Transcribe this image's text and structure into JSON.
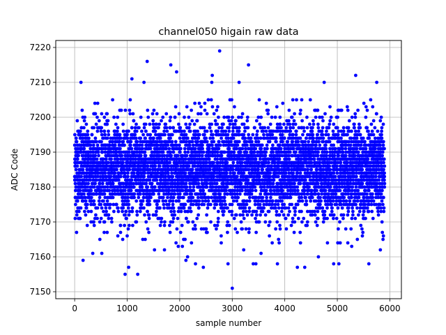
{
  "chart_data": {
    "type": "scatter",
    "title": "channel050 higain raw data",
    "xlabel": "sample number",
    "ylabel": "ADC Code",
    "xlim": [
      -360,
      6220
    ],
    "ylim": [
      7148,
      7222
    ],
    "xticks": [
      0,
      1000,
      2000,
      3000,
      4000,
      5000,
      6000
    ],
    "yticks": [
      7150,
      7160,
      7170,
      7180,
      7190,
      7200,
      7210,
      7220
    ],
    "grid": true,
    "marker_color": "#0000ff",
    "series": [
      {
        "n_samples": 6000,
        "x_range": [
          0,
          5900
        ],
        "band_core": [
          7172,
          7198
        ],
        "band_full": [
          7157,
          7205
        ],
        "points": [
          [
            1380,
            7216
          ],
          [
            1830,
            7215
          ],
          [
            1940,
            7213
          ],
          [
            2760,
            7219
          ],
          [
            3310,
            7215
          ],
          [
            5350,
            7212
          ],
          [
            2620,
            7212
          ],
          [
            1090,
            7211
          ],
          [
            120,
            7210
          ],
          [
            1320,
            7210
          ],
          [
            2610,
            7210
          ],
          [
            3130,
            7210
          ],
          [
            4750,
            7210
          ],
          [
            5750,
            7210
          ],
          [
            3000,
            7151
          ],
          [
            960,
            7155
          ],
          [
            1200,
            7155
          ],
          [
            160,
            7159
          ],
          [
            1520,
            7162
          ],
          [
            2050,
            7163
          ],
          [
            2300,
            7158
          ],
          [
            2450,
            7157
          ],
          [
            2920,
            7158
          ],
          [
            3400,
            7158
          ],
          [
            3450,
            7158
          ],
          [
            3860,
            7158
          ],
          [
            4240,
            7157
          ],
          [
            4640,
            7160
          ],
          [
            4930,
            7158
          ],
          [
            5030,
            7158
          ],
          [
            5600,
            7158
          ],
          [
            5820,
            7162
          ],
          [
            5870,
            7165
          ],
          [
            1000,
            7166
          ],
          [
            4380,
            7157
          ],
          [
            1710,
            7162
          ],
          [
            2150,
            7160
          ],
          [
            3760,
            7164
          ],
          [
            5200,
            7164
          ]
        ]
      }
    ]
  }
}
